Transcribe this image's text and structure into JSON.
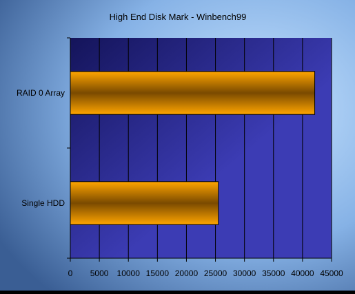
{
  "chart_data": {
    "type": "bar",
    "orientation": "horizontal",
    "title": "High End Disk Mark - Winbench99",
    "xlabel": "",
    "ylabel": "",
    "categories": [
      "RAID 0 Array",
      "Single HDD"
    ],
    "values": [
      42100,
      25500
    ],
    "xlim": [
      0,
      45000
    ],
    "ticks": [
      0,
      5000,
      10000,
      15000,
      20000,
      25000,
      30000,
      35000,
      40000,
      45000
    ],
    "grid": true,
    "legend": "none"
  },
  "colors": {
    "bar_light": "#FFA500",
    "bar_dark": "#7A4A00",
    "plot_light": "#3C3CB4",
    "plot_dark": "#14145A",
    "bg_light": "#C8E4FF",
    "bg_dark": "#3A5E94"
  }
}
